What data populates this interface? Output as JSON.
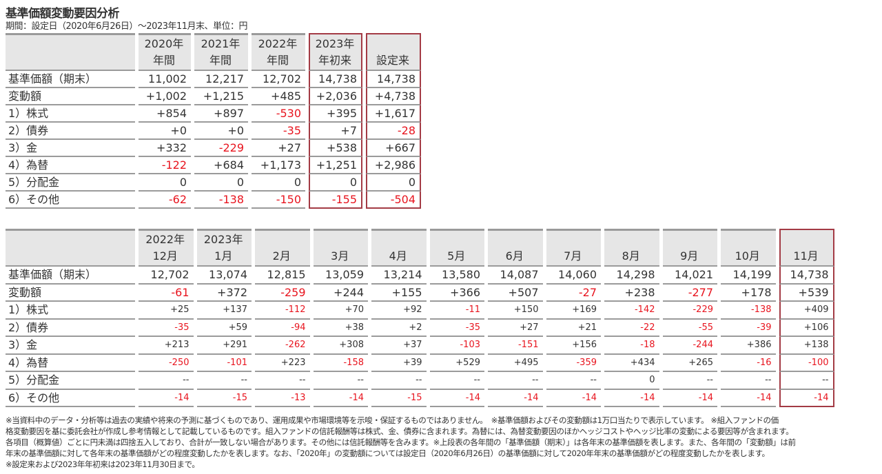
{
  "title": "基準価額変動要因分析",
  "subtitle": "期間：設定日（2020年6月26日）～2023年11月末、単位：円",
  "colors": {
    "negative": "#e8141e",
    "highlight_border": "#a33a44",
    "header_bg": "#e6e6e6"
  },
  "top_table": {
    "columns": [
      {
        "line1": "2020年",
        "line2": "年間"
      },
      {
        "line1": "2021年",
        "line2": "年間"
      },
      {
        "line1": "2022年",
        "line2": "年間"
      },
      {
        "line1": "2023年",
        "line2": "年初来",
        "highlight": true
      },
      {
        "line1": "",
        "line2": "設定来",
        "highlight": true
      }
    ],
    "rows": [
      {
        "label": "基準価額（期末）",
        "values": [
          "11,002",
          "12,217",
          "12,702",
          "14,738",
          "14,738"
        ]
      },
      {
        "label": "変動額",
        "values": [
          "+1,002",
          "+1,215",
          "+485",
          "+2,036",
          "+4,738"
        ]
      },
      {
        "label": "1）株式",
        "values": [
          "+854",
          "+897",
          "-530",
          "+395",
          "+1,617"
        ]
      },
      {
        "label": "2）債券",
        "values": [
          "+0",
          "+0",
          "-35",
          "+7",
          "-28"
        ]
      },
      {
        "label": "3）金",
        "values": [
          "+332",
          "-229",
          "+27",
          "+538",
          "+667"
        ]
      },
      {
        "label": "4）為替",
        "values": [
          "-122",
          "+684",
          "+1,173",
          "+1,251",
          "+2,986"
        ]
      },
      {
        "label": "5）分配金",
        "values": [
          "0",
          "0",
          "0",
          "0",
          "0"
        ]
      },
      {
        "label": "6）その他",
        "values": [
          "-62",
          "-138",
          "-150",
          "-155",
          "-504"
        ]
      }
    ]
  },
  "bottom_table": {
    "columns": [
      {
        "line1": "2022年",
        "line2": "12月"
      },
      {
        "line1": "2023年",
        "line2": "1月"
      },
      {
        "line1": "",
        "line2": "2月"
      },
      {
        "line1": "",
        "line2": "3月"
      },
      {
        "line1": "",
        "line2": "4月"
      },
      {
        "line1": "",
        "line2": "5月"
      },
      {
        "line1": "",
        "line2": "6月"
      },
      {
        "line1": "",
        "line2": "7月"
      },
      {
        "line1": "",
        "line2": "8月"
      },
      {
        "line1": "",
        "line2": "9月"
      },
      {
        "line1": "",
        "line2": "10月"
      },
      {
        "line1": "",
        "line2": "11月",
        "highlight": true
      }
    ],
    "rows": [
      {
        "label": "基準価額（期末）",
        "values": [
          "12,702",
          "13,074",
          "12,815",
          "13,059",
          "13,214",
          "13,580",
          "14,087",
          "14,060",
          "14,298",
          "14,021",
          "14,199",
          "14,738"
        ]
      },
      {
        "label": "変動額",
        "values": [
          "-61",
          "+372",
          "-259",
          "+244",
          "+155",
          "+366",
          "+507",
          "-27",
          "+238",
          "-277",
          "+178",
          "+539"
        ]
      },
      {
        "label": "1）株式",
        "small": true,
        "values": [
          "+25",
          "+137",
          "-112",
          "+70",
          "+92",
          "-11",
          "+150",
          "+169",
          "-142",
          "-229",
          "-138",
          "+409"
        ]
      },
      {
        "label": "2）債券",
        "small": true,
        "values": [
          "-35",
          "+59",
          "-94",
          "+38",
          "+2",
          "-35",
          "+27",
          "+21",
          "-22",
          "-55",
          "-39",
          "+106"
        ]
      },
      {
        "label": "3）金",
        "small": true,
        "values": [
          "+213",
          "+291",
          "-262",
          "+308",
          "+37",
          "-103",
          "-151",
          "+156",
          "-18",
          "-244",
          "+386",
          "+138"
        ]
      },
      {
        "label": "4）為替",
        "small": true,
        "values": [
          "-250",
          "-101",
          "+223",
          "-158",
          "+39",
          "+529",
          "+495",
          "-359",
          "+434",
          "+265",
          "-16",
          "-100"
        ]
      },
      {
        "label": "5）分配金",
        "small": true,
        "values": [
          "--",
          "--",
          "--",
          "--",
          "--",
          "--",
          "--",
          "--",
          "0",
          "--",
          "--",
          "--"
        ]
      },
      {
        "label": "6）その他",
        "small": true,
        "values": [
          "-14",
          "-15",
          "-13",
          "-14",
          "-15",
          "-14",
          "-14",
          "-14",
          "-14",
          "-14",
          "-14",
          "-14"
        ]
      }
    ]
  },
  "notes": [
    "※当資料中のデータ・分析等は過去の実績や将来の予測に基づくものであり、運用成果や市場環境等を示唆・保証するものではありません。　※基準価額およびその変動額は1万口当たりで表示しています。 ※組入ファンドの価",
    "格変動要因を基に委託会社が作成し参考情報として記載しているものです。組入ファンドの信託報酬等は株式、金、債券に含まれます。為替には、為替変動要因のほかヘッジコストやヘッジ比率の変動による要因等が含まれます。",
    "各項目（概算値）ごとに円未満は四捨五入しており、合計が一致しない場合があります。その他には信託報酬等を含みます。※上段表の各年間の「基準価額（期末）」は各年末の基準価額を表します。また、各年間の「変動額」は前",
    "年末の基準価額に対して各年末の基準価額がどの程度変動したかを表します。なお、「2020年」の変動額については設定日（2020年6月26日）の基準価額に対して2020年年末の基準価額がどの程度変動したかを表します。",
    "※設定来および2023年年初来は2023年11月30日まで。"
  ]
}
